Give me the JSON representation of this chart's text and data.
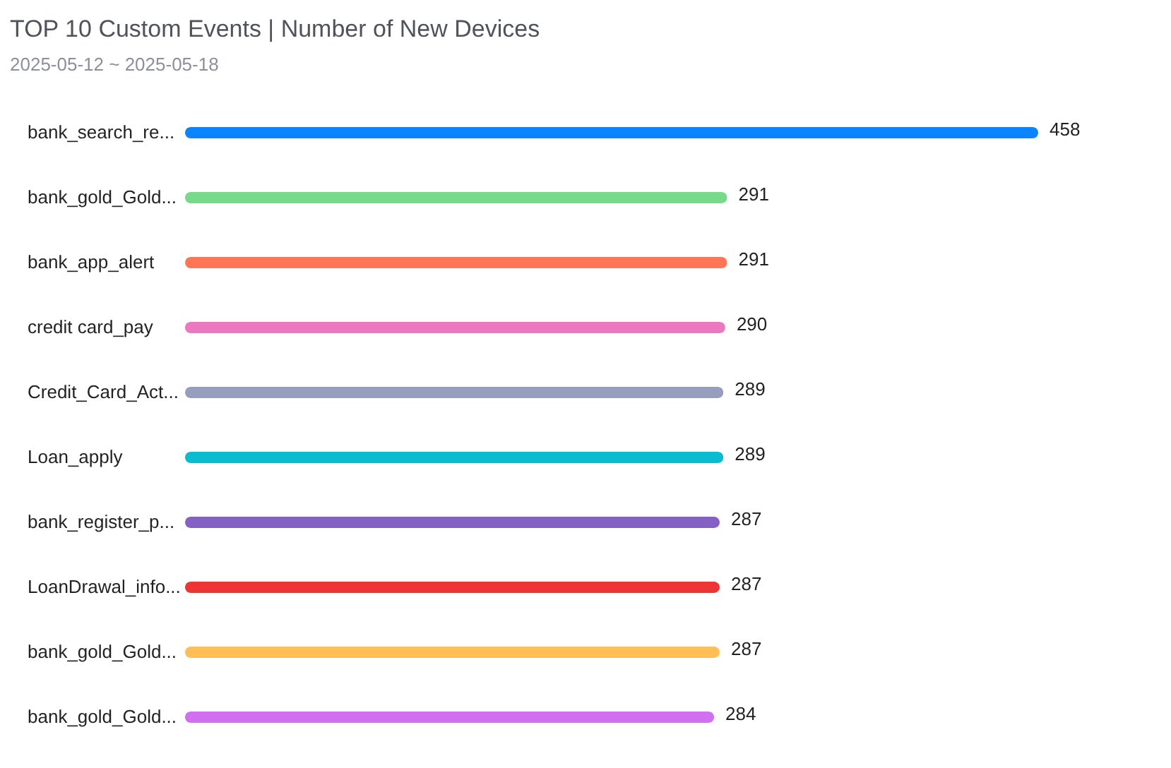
{
  "chart_data": {
    "type": "bar",
    "orientation": "horizontal",
    "title": "TOP 10 Custom Events | Number of New Devices",
    "subtitle": "2025-05-12 ~ 2025-05-18",
    "categories": [
      "bank_search_re...",
      "bank_gold_Gold...",
      "bank_app_alert",
      "credit card_pay",
      "Credit_Card_Act...",
      "Loan_apply",
      "bank_register_p...",
      "LoanDrawal_info...",
      "bank_gold_Gold...",
      "bank_gold_Gold..."
    ],
    "values": [
      458,
      291,
      291,
      290,
      289,
      289,
      287,
      287,
      287,
      284
    ],
    "colors": [
      "#0a84ff",
      "#77d98a",
      "#ff7657",
      "#ec79bf",
      "#969ebd",
      "#09bccf",
      "#8661c5",
      "#ee3536",
      "#ffbf56",
      "#d16ff0"
    ],
    "data_labels": true,
    "tick_labels": "y",
    "grid": false
  }
}
